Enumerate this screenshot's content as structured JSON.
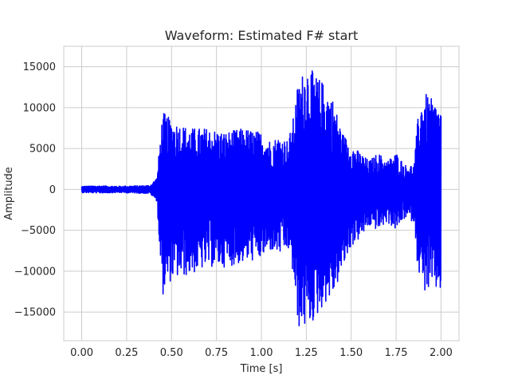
{
  "chart_data": {
    "type": "line",
    "title": "Waveform: Estimated F# start",
    "xlabel": "Time [s]",
    "ylabel": "Amplitude",
    "xlim": [
      -0.1,
      2.1
    ],
    "ylim": [
      -18500,
      17500
    ],
    "xticks": [
      0.0,
      0.25,
      0.5,
      0.75,
      1.0,
      1.25,
      1.5,
      1.75,
      2.0
    ],
    "xtick_labels": [
      "0.00",
      "0.25",
      "0.50",
      "0.75",
      "1.00",
      "1.25",
      "1.50",
      "1.75",
      "2.00"
    ],
    "yticks": [
      -15000,
      -10000,
      -5000,
      0,
      5000,
      10000,
      15000
    ],
    "ytick_labels": [
      "−15000",
      "−10000",
      "−5000",
      "0",
      "5000",
      "10000",
      "15000"
    ],
    "grid": true,
    "series": [
      {
        "color": "#0000ff",
        "envelope": {
          "x": [
            0.0,
            0.1,
            0.2,
            0.3,
            0.38,
            0.42,
            0.43,
            0.45,
            0.5,
            0.6,
            0.7,
            0.8,
            0.9,
            1.0,
            1.05,
            1.1,
            1.15,
            1.18,
            1.2,
            1.25,
            1.3,
            1.35,
            1.4,
            1.45,
            1.5,
            1.55,
            1.6,
            1.65,
            1.7,
            1.75,
            1.8,
            1.85,
            1.87,
            1.9,
            1.95,
            2.0
          ],
          "upper": [
            400,
            450,
            400,
            450,
            500,
            1500,
            4500,
            9500,
            8500,
            7500,
            7500,
            7000,
            7500,
            7000,
            6000,
            6500,
            6000,
            9000,
            12500,
            15500,
            14000,
            13000,
            11000,
            7000,
            5500,
            4500,
            3500,
            4500,
            3500,
            4500,
            3000,
            3000,
            8500,
            12000,
            11000,
            10000
          ],
          "lower": [
            -400,
            -450,
            -400,
            -450,
            -500,
            -1500,
            -6500,
            -13000,
            -11000,
            -10500,
            -9500,
            -9500,
            -9000,
            -8500,
            -7500,
            -8000,
            -7500,
            -11000,
            -17000,
            -17000,
            -16000,
            -14000,
            -13000,
            -10000,
            -7000,
            -6000,
            -4500,
            -5000,
            -4000,
            -5000,
            -3500,
            -4000,
            -9500,
            -12500,
            -12500,
            -12500
          ]
        }
      }
    ]
  }
}
